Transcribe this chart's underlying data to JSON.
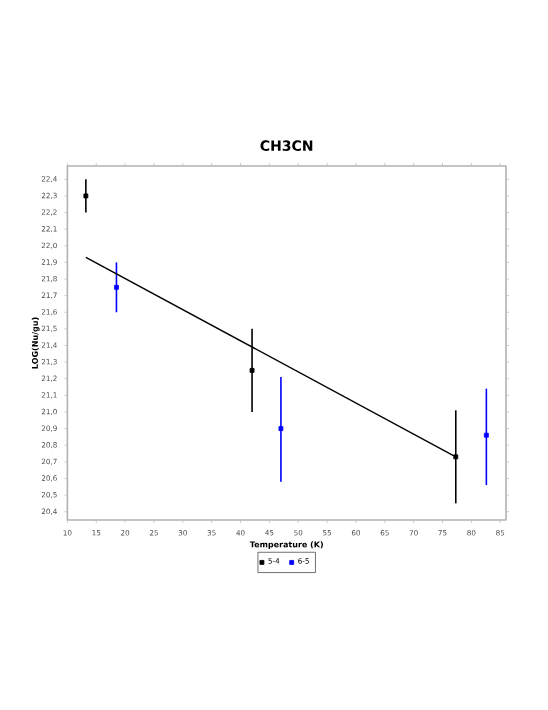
{
  "chart_data": {
    "type": "scatter",
    "title": "CH3CN",
    "xlabel": "Temperature (K)",
    "ylabel": "LOG(Nu/gu)",
    "xlim": [
      10,
      86
    ],
    "ylim": [
      20.35,
      22.48
    ],
    "xticks": [
      10,
      15,
      20,
      25,
      30,
      35,
      40,
      45,
      50,
      55,
      60,
      65,
      70,
      75,
      80,
      85
    ],
    "yticks": [
      {
        "value": 20.4,
        "label": "20,4"
      },
      {
        "value": 20.5,
        "label": "20,5"
      },
      {
        "value": 20.6,
        "label": "20,6"
      },
      {
        "value": 20.7,
        "label": "20,7"
      },
      {
        "value": 20.8,
        "label": "20,8"
      },
      {
        "value": 20.9,
        "label": "20,9"
      },
      {
        "value": 21.0,
        "label": "21,0"
      },
      {
        "value": 21.1,
        "label": "21,1"
      },
      {
        "value": 21.2,
        "label": "21,2"
      },
      {
        "value": 21.3,
        "label": "21,3"
      },
      {
        "value": 21.4,
        "label": "21,4"
      },
      {
        "value": 21.5,
        "label": "21,5"
      },
      {
        "value": 21.6,
        "label": "21,6"
      },
      {
        "value": 21.7,
        "label": "21,7"
      },
      {
        "value": 21.8,
        "label": "21,8"
      },
      {
        "value": 21.9,
        "label": "21,9"
      },
      {
        "value": 22.0,
        "label": "22,0"
      },
      {
        "value": 22.1,
        "label": "22,1"
      },
      {
        "value": 22.2,
        "label": "22,2"
      },
      {
        "value": 22.3,
        "label": "22,3"
      },
      {
        "value": 22.4,
        "label": "22,4"
      }
    ],
    "legend": "bottom",
    "series": [
      {
        "name": "5-4",
        "color": "#000000",
        "marker": "square",
        "x": [
          13.2,
          42,
          77.3
        ],
        "values": [
          22.3,
          21.25,
          20.73
        ],
        "errors": [
          [
            22.2,
            22.4
          ],
          [
            21.0,
            21.5
          ],
          [
            20.45,
            21.01
          ]
        ]
      },
      {
        "name": "6-5",
        "color": "#0000ff",
        "marker": "square",
        "x": [
          18.5,
          47,
          82.6
        ],
        "values": [
          21.75,
          20.9,
          20.86
        ],
        "errors": [
          [
            21.6,
            21.9
          ],
          [
            20.58,
            21.21
          ],
          [
            20.56,
            21.14
          ]
        ]
      },
      {
        "type": "line",
        "color": "#000000",
        "x": [
          13.2,
          77.3
        ],
        "values": [
          21.93,
          20.73
        ]
      }
    ]
  }
}
